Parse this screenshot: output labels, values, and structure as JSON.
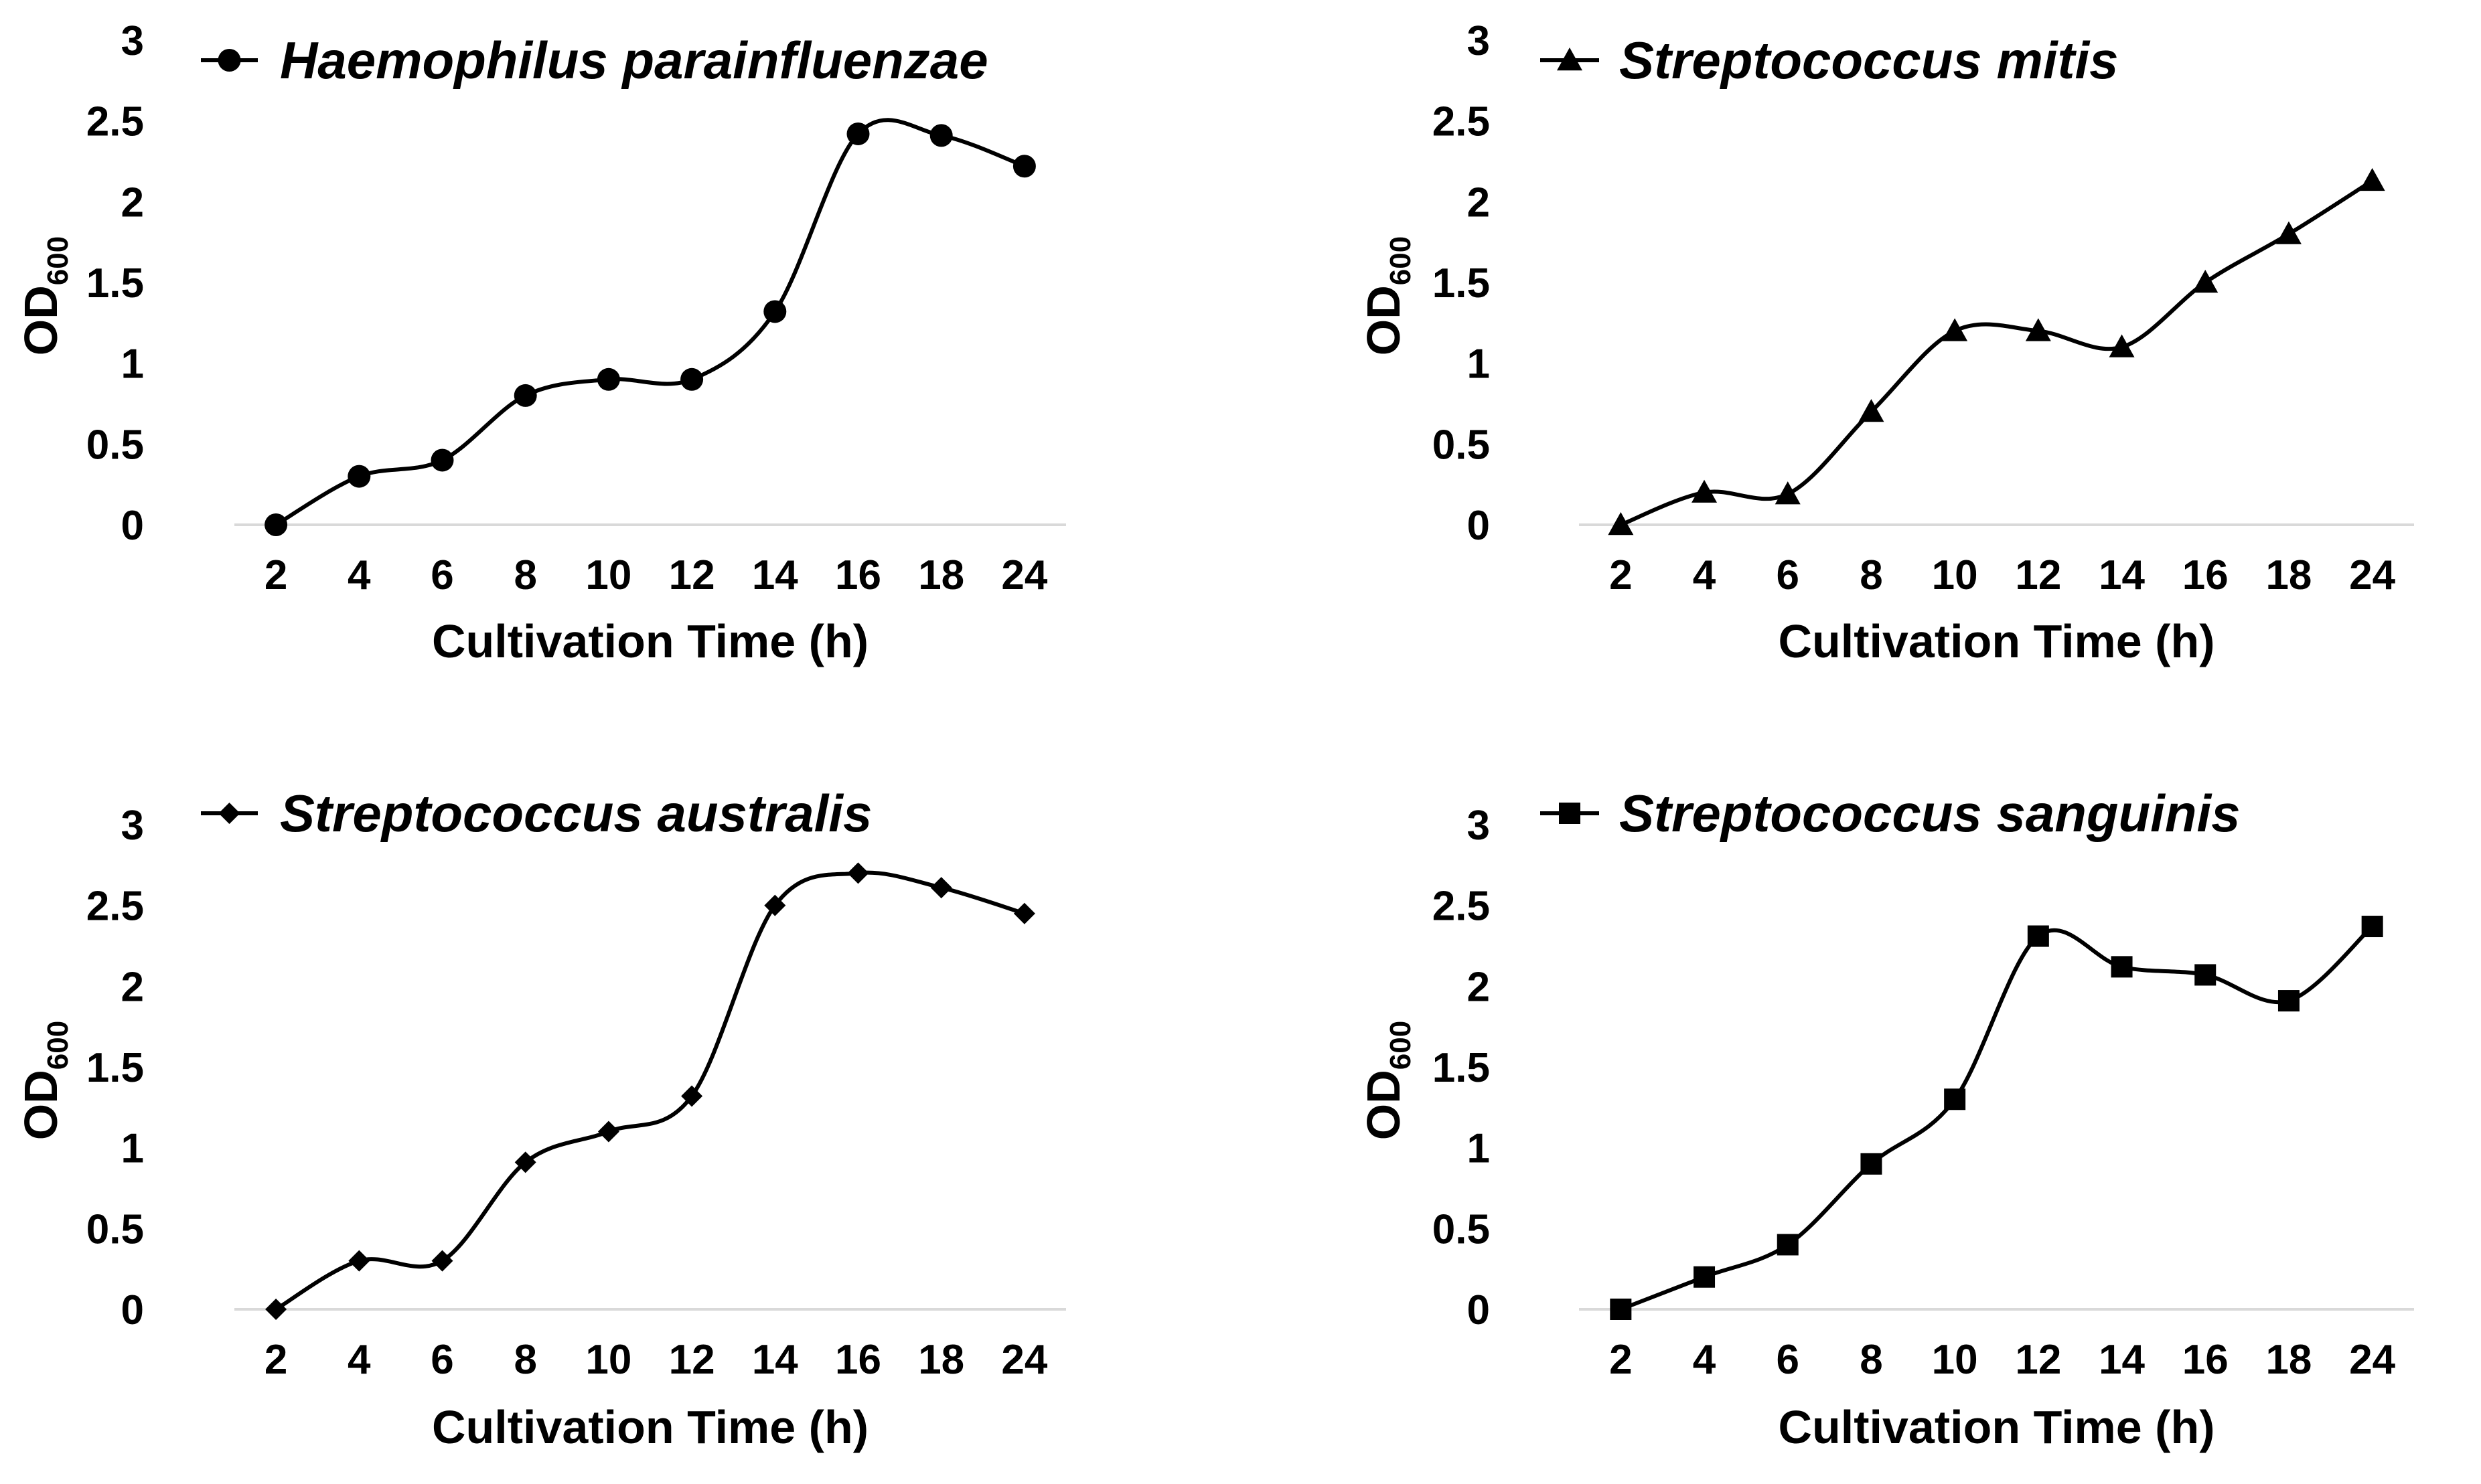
{
  "figure": {
    "line_color": "#000000",
    "axis_color": "#d9d9d9"
  },
  "chart_data": [
    {
      "type": "line",
      "title": "",
      "legend": "Haemophilus parainfluenzae",
      "marker": "circle",
      "categories": [
        "2",
        "4",
        "6",
        "8",
        "10",
        "12",
        "14",
        "16",
        "18",
        "24"
      ],
      "values": [
        0,
        0.3,
        0.4,
        0.8,
        0.9,
        0.9,
        1.32,
        2.42,
        2.41,
        2.22
      ],
      "xlabel": "Cultivation Time (h)",
      "ylabel_main": "OD",
      "ylabel_sub": "600",
      "yticks": [
        "0",
        "0.5",
        "1",
        "1.5",
        "2",
        "2.5",
        "3"
      ],
      "ylim": [
        0,
        3
      ],
      "grid": false
    },
    {
      "type": "line",
      "title": "",
      "legend": "Streptococcus mitis",
      "marker": "triangle",
      "categories": [
        "2",
        "4",
        "6",
        "8",
        "10",
        "12",
        "14",
        "16",
        "18",
        "24"
      ],
      "values": [
        0,
        0.2,
        0.19,
        0.7,
        1.2,
        1.2,
        1.1,
        1.5,
        1.8,
        2.13
      ],
      "xlabel": "Cultivation Time (h)",
      "ylabel_main": "OD",
      "ylabel_sub": "600",
      "yticks": [
        "0",
        "0.5",
        "1",
        "1.5",
        "2",
        "2.5",
        "3"
      ],
      "ylim": [
        0,
        3
      ],
      "grid": false
    },
    {
      "type": "line",
      "title": "",
      "legend": "Streptococcus australis",
      "marker": "diamond",
      "categories": [
        "2",
        "4",
        "6",
        "8",
        "10",
        "12",
        "14",
        "16",
        "18",
        "24"
      ],
      "values": [
        0,
        0.3,
        0.3,
        0.91,
        1.1,
        1.32,
        2.5,
        2.7,
        2.61,
        2.45
      ],
      "xlabel": "Cultivation Time (h)",
      "ylabel_main": "OD",
      "ylabel_sub": "600",
      "yticks": [
        "0",
        "0.5",
        "1",
        "1.5",
        "2",
        "2.5",
        "3"
      ],
      "ylim": [
        0,
        3
      ],
      "grid": false
    },
    {
      "type": "line",
      "title": "",
      "legend": "Streptococcus sanguinis",
      "marker": "square",
      "categories": [
        "2",
        "4",
        "6",
        "8",
        "10",
        "12",
        "14",
        "16",
        "18",
        "24"
      ],
      "values": [
        0,
        0.2,
        0.4,
        0.9,
        1.3,
        2.31,
        2.12,
        2.07,
        1.91,
        2.37
      ],
      "xlabel": "Cultivation Time (h)",
      "ylabel_main": "OD",
      "ylabel_sub": "600",
      "yticks": [
        "0",
        "0.5",
        "1",
        "1.5",
        "2",
        "2.5",
        "3"
      ],
      "ylim": [
        0,
        3
      ],
      "grid": false
    }
  ]
}
